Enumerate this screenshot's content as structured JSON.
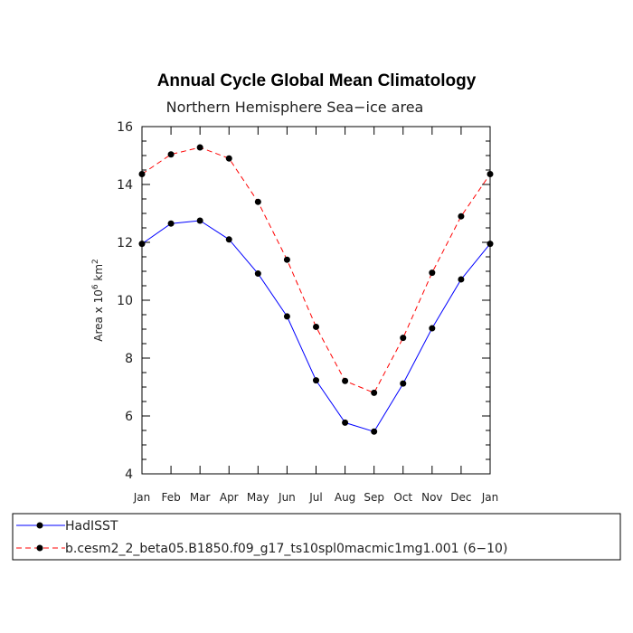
{
  "chart_data": {
    "type": "line",
    "title": "Annual Cycle Global Mean Climatology",
    "subtitle": "Northern Hemisphere Sea−ice area",
    "ylabel_prefix": "Area x 10",
    "ylabel_exp": "6",
    "ylabel_unit": " km",
    "ylabel_unit_exp": "2",
    "categories": [
      "Jan",
      "Feb",
      "Mar",
      "Apr",
      "May",
      "Jun",
      "Jul",
      "Aug",
      "Sep",
      "Oct",
      "Nov",
      "Dec",
      "Jan"
    ],
    "ylim": [
      4,
      16
    ],
    "yticks": [
      4,
      6,
      8,
      10,
      12,
      14,
      16
    ],
    "series": [
      {
        "name": "HadISST",
        "color": "#0000ff",
        "dash": "solid",
        "values": [
          11.95,
          12.65,
          12.75,
          12.1,
          10.92,
          9.44,
          7.23,
          5.77,
          5.46,
          7.12,
          9.03,
          10.72,
          11.95
        ]
      },
      {
        "name": "b.cesm2_2_beta05.B1850.f09_g17_ts10spl0macmic1mg1.001 (6−10)",
        "color": "#ff0000",
        "dash": "dashed",
        "values": [
          14.36,
          15.04,
          15.28,
          14.9,
          13.4,
          11.4,
          9.08,
          7.21,
          6.8,
          8.7,
          10.95,
          12.9,
          14.36
        ]
      }
    ]
  }
}
